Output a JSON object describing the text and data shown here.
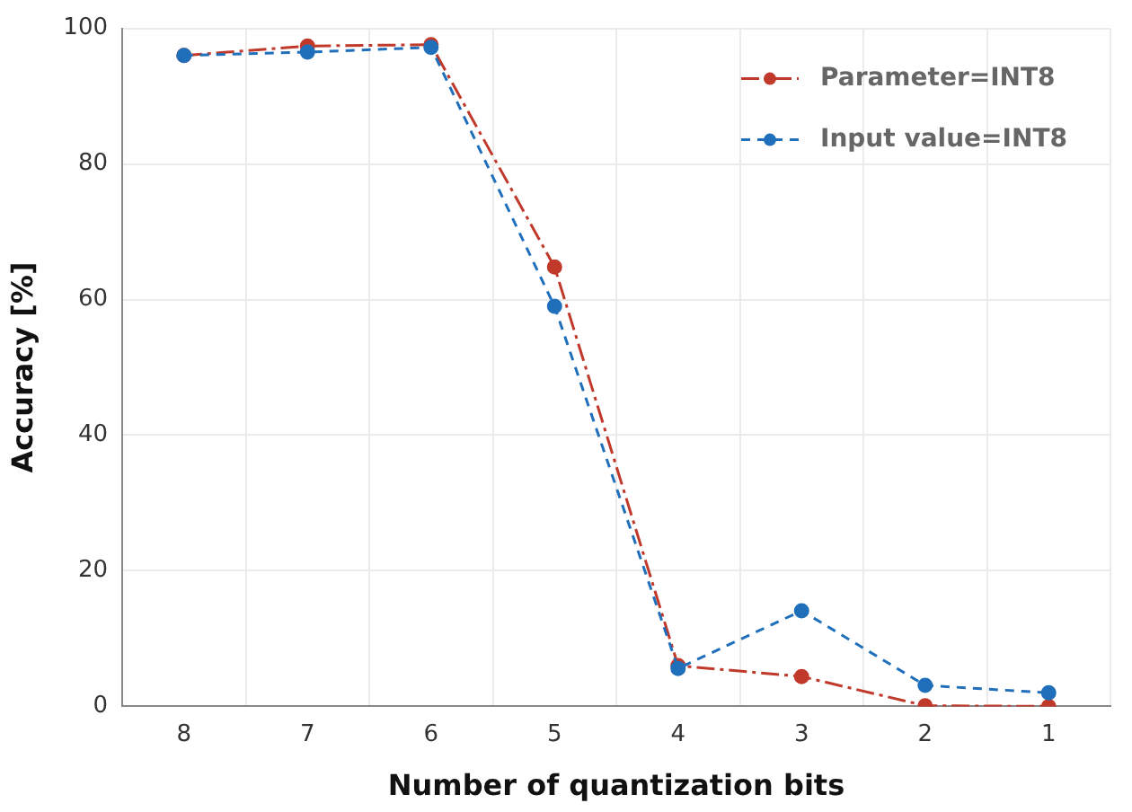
{
  "chart_data": {
    "type": "line",
    "xlabel": "Number of quantization bits",
    "ylabel": "Accuracy [%]",
    "categories": [
      "8",
      "7",
      "6",
      "5",
      "4",
      "3",
      "2",
      "1"
    ],
    "series": [
      {
        "name": "Parameter=INT8",
        "color": "#c0392b",
        "line_style": "dashdot",
        "values": [
          96.0,
          97.4,
          97.6,
          64.8,
          6.0,
          4.4,
          0.1,
          0
        ]
      },
      {
        "name": "Input value=INT8",
        "color": "#1f6fba",
        "line_style": "dashed",
        "values": [
          96.0,
          96.5,
          97.2,
          59.0,
          5.6,
          14.1,
          3.1,
          2.0
        ]
      }
    ],
    "ylim": [
      0,
      100
    ],
    "yticks": [
      0,
      20,
      40,
      60,
      80,
      100
    ],
    "grid": true,
    "legend": "top right",
    "marker": "circle"
  }
}
